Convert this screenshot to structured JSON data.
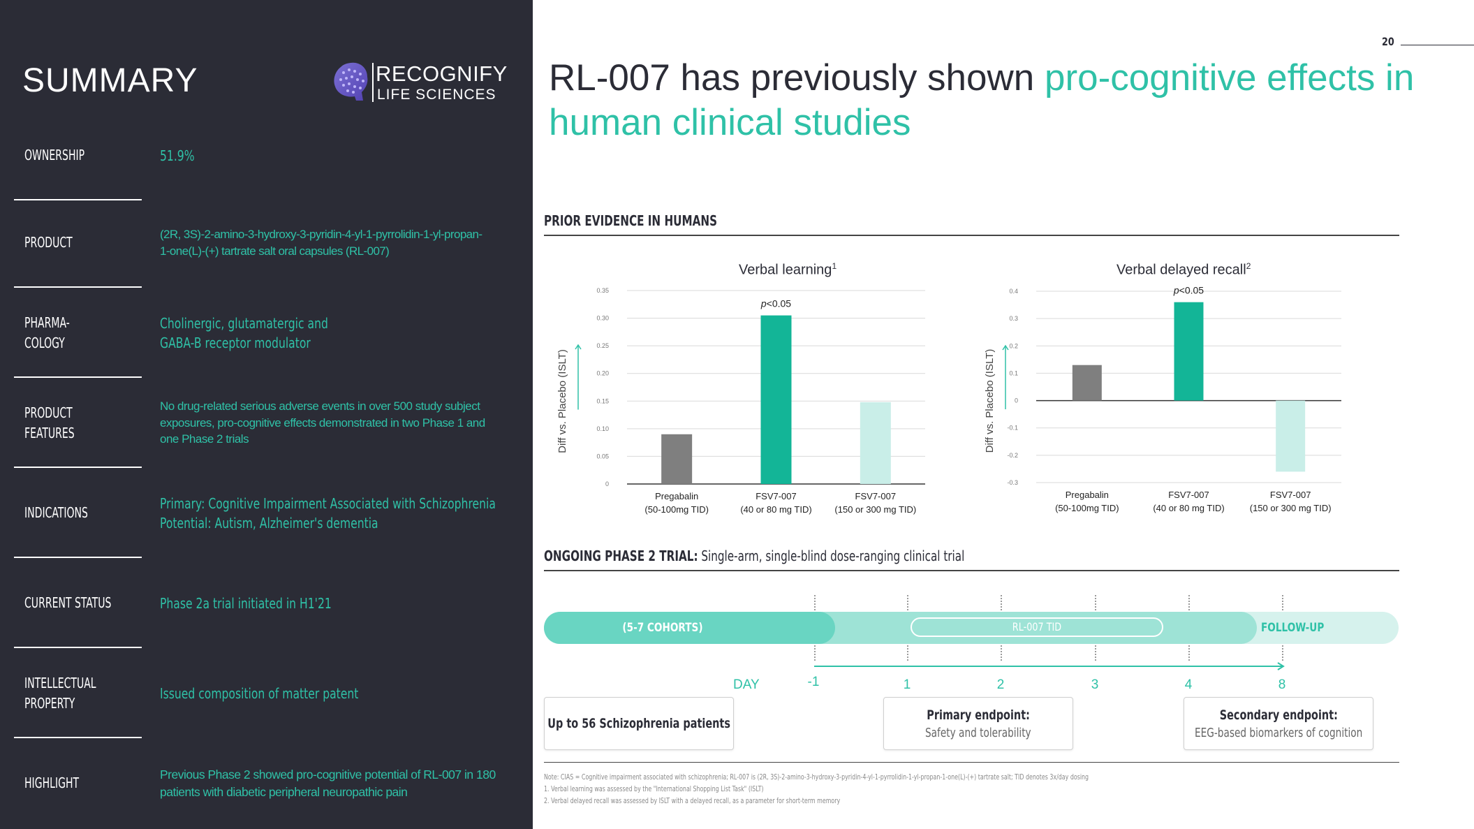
{
  "left_panel": {
    "title": "SUMMARY",
    "logo": {
      "line1": "RECOGNIFY",
      "line2": "LIFE SCIENCES"
    },
    "rows": [
      {
        "label": "OWNERSHIP",
        "value": "51.9%"
      },
      {
        "label": "PRODUCT",
        "value": "(2R, 3S)-2-amino-3-hydroxy-3-pyridin-4-yl-1-pyrrolidin-1-yl-propan-1-one(L)-(+) tartrate salt oral capsules (RL-007)"
      },
      {
        "label": "PHARMA-\nCOLOGY",
        "value": "Cholinergic, glutamatergic and\nGABA-B receptor modulator"
      },
      {
        "label": "PRODUCT FEATURES",
        "value": "No drug-related serious adverse events in over 500 study subject exposures, pro-cognitive effects demonstrated in two Phase 1 and one Phase 2 trials"
      },
      {
        "label": "INDICATIONS",
        "value": "Primary: Cognitive Impairment Associated with Schizophrenia\nPotential: Autism, Alzheimer's dementia"
      },
      {
        "label": "CURRENT STATUS",
        "value": "Phase 2a trial initiated in H1'21"
      },
      {
        "label": "INTELLECTUAL\nPROPERTY",
        "value": "Issued composition of matter patent"
      },
      {
        "label": "HIGHLIGHT",
        "value": "Previous Phase 2 showed pro-cognitive potential of RL-007 in 180 patients with diabetic peripheral neuropathic pain"
      }
    ]
  },
  "page_number": "20",
  "headline": {
    "part1": "RL-007 has previously shown ",
    "part2": "pro-cognitive effects in human clinical studies"
  },
  "section1": {
    "title": "PRIOR EVIDENCE IN HUMANS"
  },
  "section2": {
    "title_bold": "ONGOING PHASE 2 TRIAL:",
    "title_rest": " Single-arm, single-blind dose-ranging clinical trial"
  },
  "colors": {
    "teal": "#13b597",
    "gray": "#7f7f7f",
    "light_teal": "#c9eee8",
    "accent": "#2fc1a7",
    "dark": "#2b2c36"
  },
  "chart_data": [
    {
      "type": "bar",
      "title": "Verbal learning",
      "title_sup": "1",
      "ylabel": "Diff vs. Placebo (ISLT)",
      "ylim": [
        0,
        0.35
      ],
      "yticks": [
        "0",
        "0.05",
        "0.10",
        "0.15",
        "0.20",
        "0.25",
        "0.30",
        "0.35"
      ],
      "yvals": [
        0,
        0.05,
        0.1,
        0.15,
        0.2,
        0.25,
        0.3,
        0.35
      ],
      "categories": [
        "Pregabalin\n(50-100mg TID)",
        "FSV7-007\n(40 or 80 mg TID)",
        "FSV7-007\n(150 or 300 mg TID)"
      ],
      "values": [
        0.09,
        0.305,
        0.148
      ],
      "annotation": "p<0.05"
    },
    {
      "type": "bar",
      "title": "Verbal delayed recall",
      "title_sup": "2",
      "ylabel": "Diff vs. Placebo (ISLT)",
      "ylim": [
        -0.3,
        0.4
      ],
      "yticks": [
        "-0.3",
        "-0.2",
        "-0.1",
        "0",
        "0.1",
        "0.2",
        "0.3",
        "0.4"
      ],
      "yvals": [
        -0.3,
        -0.2,
        -0.1,
        0,
        0.1,
        0.2,
        0.3,
        0.4
      ],
      "categories": [
        "Pregabalin\n(50-100mg TID)",
        "FSV7-007\n(40 or 80 mg TID)",
        "FSV7-007\n(150 or 300 mg TID)"
      ],
      "values": [
        0.13,
        0.36,
        -0.26
      ],
      "annotation": "p<0.05"
    }
  ],
  "timeline": {
    "cohorts": "(5-7 COHORTS)",
    "treatment": "RL-007 TID",
    "followup": "FOLLOW-UP",
    "day_label": "DAY",
    "days": [
      "-1",
      "1",
      "2",
      "3",
      "4",
      "8"
    ]
  },
  "boxes": [
    {
      "title": "Up to 56 Schizophrenia patients",
      "subtitle": ""
    },
    {
      "title": "Primary endpoint:",
      "subtitle": "Safety and tolerability"
    },
    {
      "title": "Secondary endpoint:",
      "subtitle": "EEG-based biomarkers of cognition"
    }
  ],
  "notes": [
    "Note: CIAS = Cognitive impairment associated with schizophrenia; RL-007 is (2R, 3S)-2-amino-3-hydroxy-3-pyridin-4-yl-1-pyrrolidin-1-yl-propan-1-one(L)-(+) tartrate salt; TID denotes 3x/day dosing",
    "1.    Verbal learning was assessed by the \"International Shopping List Task\" (ISLT)",
    "2.    Verbal delayed recall was assessed by ISLT with a delayed recall, as a parameter for short-term memory"
  ]
}
